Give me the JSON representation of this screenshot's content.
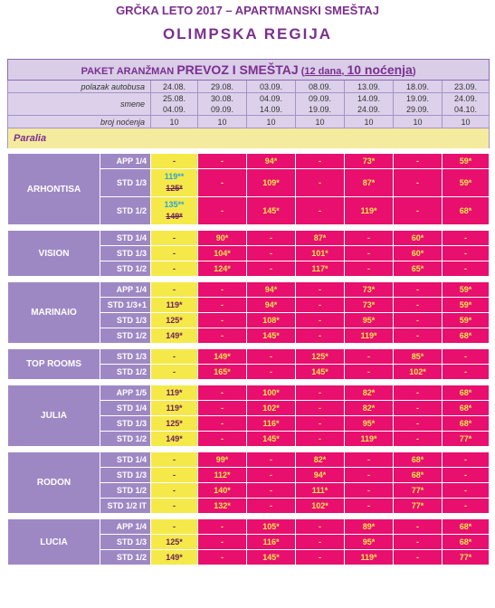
{
  "header": {
    "line1": "GRČKA LETO 2017 – APARTMANSKI SMEŠTAJ",
    "line2": "OLIMPSKA REGIJA"
  },
  "banner": {
    "prefix": "PAKET ARANŽMAN",
    "main": "PREVOZ I SMEŠTAJ",
    "open": "(",
    "days": "12 dana",
    "comma": ", ",
    "nights": "10 noćenja",
    "close": ")"
  },
  "labels": {
    "departure": "polazak autobusa",
    "shifts": "smene",
    "nights": "broj noćenja"
  },
  "departures": [
    "24.08.",
    "29.08.",
    "03.09.",
    "08.09.",
    "13.09.",
    "18.09.",
    "23.09."
  ],
  "shift_start": [
    "25.08.",
    "30.08.",
    "04.09.",
    "09.09.",
    "14.09.",
    "19.09.",
    "24.09."
  ],
  "shift_end": [
    "04.09.",
    "09.09.",
    "14.09.",
    "19.09.",
    "24.09.",
    "29.09.",
    "04.10."
  ],
  "night_counts": [
    "10",
    "10",
    "10",
    "10",
    "10",
    "10",
    "10"
  ],
  "region": "Paralia",
  "hotels": [
    {
      "name": "ARHONTISA",
      "rows": [
        {
          "type": "APP 1/4",
          "p": [
            "-",
            "-",
            "94*",
            "-",
            "73*",
            "-",
            "59*"
          ]
        },
        {
          "type": "STD 1/3",
          "p": [
            "119**|125*",
            "-",
            "109*",
            "-",
            "87*",
            "-",
            "59*"
          ]
        },
        {
          "type": "STD 1/2",
          "p": [
            "135**|149*",
            "-",
            "145*",
            "-",
            "119*",
            "-",
            "68*"
          ]
        }
      ]
    },
    {
      "name": "VISION",
      "rows": [
        {
          "type": "STD 1/4",
          "p": [
            "-",
            "90*",
            "-",
            "87*",
            "-",
            "60*",
            "-"
          ]
        },
        {
          "type": "STD 1/3",
          "p": [
            "-",
            "104*",
            "-",
            "101*",
            "-",
            "60*",
            "-"
          ]
        },
        {
          "type": "STD 1/2",
          "p": [
            "-",
            "124*",
            "-",
            "117*",
            "-",
            "65*",
            "-"
          ]
        }
      ]
    },
    {
      "name": "MARINAIO",
      "rows": [
        {
          "type": "APP 1/4",
          "p": [
            "-",
            "-",
            "94*",
            "-",
            "73*",
            "-",
            "59*"
          ]
        },
        {
          "type": "STD 1/3+1",
          "p": [
            "119*",
            "-",
            "94*",
            "-",
            "73*",
            "-",
            "59*"
          ]
        },
        {
          "type": "STD 1/3",
          "p": [
            "125*",
            "-",
            "108*",
            "-",
            "95*",
            "-",
            "59*"
          ]
        },
        {
          "type": "STD 1/2",
          "p": [
            "149*",
            "-",
            "145*",
            "-",
            "119*",
            "-",
            "68*"
          ]
        }
      ]
    },
    {
      "name": "TOP ROOMS",
      "rows": [
        {
          "type": "STD 1/3",
          "p": [
            "-",
            "149*",
            "-",
            "125*",
            "-",
            "85*",
            "-"
          ]
        },
        {
          "type": "STD 1/2",
          "p": [
            "-",
            "165*",
            "-",
            "145*",
            "-",
            "102*",
            "-"
          ]
        }
      ]
    },
    {
      "name": "JULIA",
      "rows": [
        {
          "type": "APP 1/5",
          "p": [
            "119*",
            "-",
            "100*",
            "-",
            "82*",
            "-",
            "68*"
          ]
        },
        {
          "type": "STD 1/4",
          "p": [
            "119*",
            "-",
            "102*",
            "-",
            "82*",
            "-",
            "68*"
          ]
        },
        {
          "type": "STD 1/3",
          "p": [
            "125*",
            "-",
            "116*",
            "-",
            "95*",
            "-",
            "68*"
          ]
        },
        {
          "type": "STD 1/2",
          "p": [
            "149*",
            "-",
            "145*",
            "-",
            "119*",
            "-",
            "77*"
          ]
        }
      ]
    },
    {
      "name": "RODON",
      "rows": [
        {
          "type": "STD 1/4",
          "p": [
            "-",
            "99*",
            "-",
            "82*",
            "-",
            "68*",
            "-"
          ]
        },
        {
          "type": "STD 1/3",
          "p": [
            "-",
            "112*",
            "-",
            "94*",
            "-",
            "68*",
            "-"
          ]
        },
        {
          "type": "STD 1/2",
          "p": [
            "-",
            "140*",
            "-",
            "111*",
            "-",
            "77*",
            "-"
          ]
        },
        {
          "type": "STD 1/2 IT",
          "p": [
            "-",
            "132*",
            "-",
            "102*",
            "-",
            "77*",
            "-"
          ]
        }
      ]
    },
    {
      "name": "LUCIA",
      "rows": [
        {
          "type": "APP 1/4",
          "p": [
            "-",
            "-",
            "105*",
            "-",
            "89*",
            "-",
            "68*"
          ]
        },
        {
          "type": "STD 1/3",
          "p": [
            "125*",
            "-",
            "116*",
            "-",
            "95*",
            "-",
            "68*"
          ]
        },
        {
          "type": "STD 1/2",
          "p": [
            "149*",
            "-",
            "145*",
            "-",
            "119*",
            "-",
            "77*"
          ]
        }
      ]
    }
  ],
  "colors": {
    "title": "#7b2f8f",
    "lavender": "#9e88c4",
    "yellow": "#f5e94a",
    "pink": "#e80f6e",
    "cyan": "#2aa5d8"
  }
}
